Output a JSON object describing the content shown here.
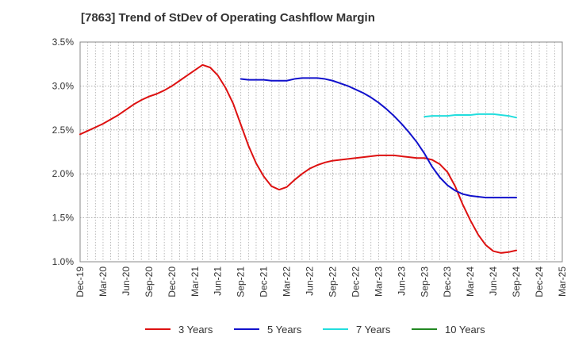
{
  "chart_data": {
    "type": "line",
    "title": "[7863]  Trend of StDev of Operating Cashflow Margin",
    "xlabel": "",
    "ylabel": "",
    "x_ticks": [
      "Dec-19",
      "Mar-20",
      "Jun-20",
      "Sep-20",
      "Dec-20",
      "Mar-21",
      "Jun-21",
      "Sep-21",
      "Dec-21",
      "Mar-22",
      "Jun-22",
      "Sep-22",
      "Dec-22",
      "Mar-23",
      "Jun-23",
      "Sep-23",
      "Dec-23",
      "Mar-24",
      "Jun-24",
      "Sep-24",
      "Dec-24",
      "Mar-25"
    ],
    "y_ticks": [
      "1.0%",
      "1.5%",
      "2.0%",
      "2.5%",
      "3.0%",
      "3.5%"
    ],
    "ylim": [
      1.0,
      3.5
    ],
    "grid": true,
    "legend_position": "bottom",
    "series": [
      {
        "name": "3 Years",
        "color": "#dd1111",
        "points": [
          [
            "Dec-19",
            2.45
          ],
          [
            "Jan-20",
            2.49
          ],
          [
            "Feb-20",
            2.53
          ],
          [
            "Mar-20",
            2.57
          ],
          [
            "Apr-20",
            2.62
          ],
          [
            "May-20",
            2.67
          ],
          [
            "Jun-20",
            2.73
          ],
          [
            "Jul-20",
            2.79
          ],
          [
            "Aug-20",
            2.84
          ],
          [
            "Sep-20",
            2.88
          ],
          [
            "Oct-20",
            2.91
          ],
          [
            "Nov-20",
            2.95
          ],
          [
            "Dec-20",
            3.0
          ],
          [
            "Jan-21",
            3.06
          ],
          [
            "Feb-21",
            3.12
          ],
          [
            "Mar-21",
            3.18
          ],
          [
            "Apr-21",
            3.24
          ],
          [
            "May-21",
            3.21
          ],
          [
            "Jun-21",
            3.12
          ],
          [
            "Jul-21",
            2.98
          ],
          [
            "Aug-21",
            2.8
          ],
          [
            "Sep-21",
            2.56
          ],
          [
            "Oct-21",
            2.32
          ],
          [
            "Nov-21",
            2.12
          ],
          [
            "Dec-21",
            1.97
          ],
          [
            "Jan-22",
            1.86
          ],
          [
            "Feb-22",
            1.82
          ],
          [
            "Mar-22",
            1.85
          ],
          [
            "Apr-22",
            1.93
          ],
          [
            "May-22",
            2.0
          ],
          [
            "Jun-22",
            2.06
          ],
          [
            "Jul-22",
            2.1
          ],
          [
            "Aug-22",
            2.13
          ],
          [
            "Sep-22",
            2.15
          ],
          [
            "Oct-22",
            2.16
          ],
          [
            "Nov-22",
            2.17
          ],
          [
            "Dec-22",
            2.18
          ],
          [
            "Jan-23",
            2.19
          ],
          [
            "Feb-23",
            2.2
          ],
          [
            "Mar-23",
            2.21
          ],
          [
            "Apr-23",
            2.21
          ],
          [
            "May-23",
            2.21
          ],
          [
            "Jun-23",
            2.2
          ],
          [
            "Jul-23",
            2.19
          ],
          [
            "Aug-23",
            2.18
          ],
          [
            "Sep-23",
            2.18
          ],
          [
            "Oct-23",
            2.16
          ],
          [
            "Nov-23",
            2.11
          ],
          [
            "Dec-23",
            2.02
          ],
          [
            "Jan-24",
            1.86
          ],
          [
            "Feb-24",
            1.65
          ],
          [
            "Mar-24",
            1.47
          ],
          [
            "Apr-24",
            1.31
          ],
          [
            "May-24",
            1.19
          ],
          [
            "Jun-24",
            1.12
          ],
          [
            "Jul-24",
            1.1
          ],
          [
            "Aug-24",
            1.11
          ],
          [
            "Sep-24",
            1.13
          ]
        ]
      },
      {
        "name": "5 Years",
        "color": "#1111cc",
        "points": [
          [
            "Sep-21",
            3.08
          ],
          [
            "Oct-21",
            3.07
          ],
          [
            "Nov-21",
            3.07
          ],
          [
            "Dec-21",
            3.07
          ],
          [
            "Jan-22",
            3.06
          ],
          [
            "Feb-22",
            3.06
          ],
          [
            "Mar-22",
            3.06
          ],
          [
            "Apr-22",
            3.08
          ],
          [
            "May-22",
            3.09
          ],
          [
            "Jun-22",
            3.09
          ],
          [
            "Jul-22",
            3.09
          ],
          [
            "Aug-22",
            3.08
          ],
          [
            "Sep-22",
            3.06
          ],
          [
            "Oct-22",
            3.03
          ],
          [
            "Nov-22",
            3.0
          ],
          [
            "Dec-22",
            2.96
          ],
          [
            "Jan-23",
            2.92
          ],
          [
            "Feb-23",
            2.87
          ],
          [
            "Mar-23",
            2.81
          ],
          [
            "Apr-23",
            2.74
          ],
          [
            "May-23",
            2.66
          ],
          [
            "Jun-23",
            2.57
          ],
          [
            "Jul-23",
            2.47
          ],
          [
            "Aug-23",
            2.36
          ],
          [
            "Sep-23",
            2.23
          ],
          [
            "Oct-23",
            2.08
          ],
          [
            "Nov-23",
            1.96
          ],
          [
            "Dec-23",
            1.87
          ],
          [
            "Jan-24",
            1.81
          ],
          [
            "Feb-24",
            1.77
          ],
          [
            "Mar-24",
            1.75
          ],
          [
            "Apr-24",
            1.74
          ],
          [
            "May-24",
            1.73
          ],
          [
            "Jun-24",
            1.73
          ],
          [
            "Jul-24",
            1.73
          ],
          [
            "Aug-24",
            1.73
          ],
          [
            "Sep-24",
            1.73
          ]
        ]
      },
      {
        "name": "7 Years",
        "color": "#22dddd",
        "points": [
          [
            "Sep-23",
            2.65
          ],
          [
            "Oct-23",
            2.66
          ],
          [
            "Nov-23",
            2.66
          ],
          [
            "Dec-23",
            2.66
          ],
          [
            "Jan-24",
            2.67
          ],
          [
            "Feb-24",
            2.67
          ],
          [
            "Mar-24",
            2.67
          ],
          [
            "Apr-24",
            2.68
          ],
          [
            "May-24",
            2.68
          ],
          [
            "Jun-24",
            2.68
          ],
          [
            "Jul-24",
            2.67
          ],
          [
            "Aug-24",
            2.66
          ],
          [
            "Sep-24",
            2.64
          ]
        ]
      },
      {
        "name": "10 Years",
        "color": "#228822",
        "points": []
      }
    ]
  }
}
